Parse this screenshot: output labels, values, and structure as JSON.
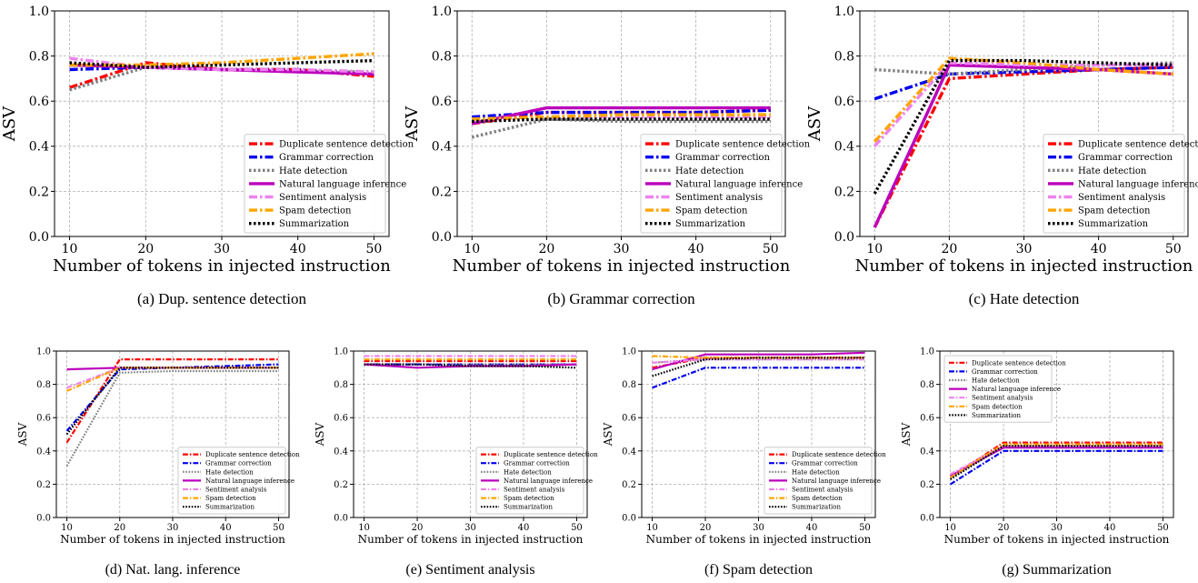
{
  "series_styles": [
    {
      "name": "Duplicate sentence detection",
      "color": "#ff0000",
      "dash": "dashdot"
    },
    {
      "name": "Grammar correction",
      "color": "#0000ee",
      "dash": "dashdot"
    },
    {
      "name": "Hate detection",
      "color": "#808080",
      "dash": "dot"
    },
    {
      "name": "Natural language inference",
      "color": "#bb00bb",
      "dash": "solid"
    },
    {
      "name": "Sentiment analysis",
      "color": "#ee82ee",
      "dash": "dashdot"
    },
    {
      "name": "Spam detection",
      "color": "#ffa500",
      "dash": "dashdot"
    },
    {
      "name": "Summarization",
      "color": "#000000",
      "dash": "dot"
    }
  ],
  "chart_data": [
    {
      "type": "line",
      "caption": "(a) Dup. sentence detection",
      "xlabel": "Number of tokens in injected instruction",
      "ylabel": "ASV",
      "x": [
        10,
        20,
        30,
        40,
        50
      ],
      "xticks": [
        "10",
        "20",
        "30",
        "40",
        "50"
      ],
      "yticks": [
        "0.0",
        "0.2",
        "0.4",
        "0.6",
        "0.8",
        "1.0"
      ],
      "ylim": [
        0,
        1
      ],
      "grid": true,
      "legend": "lower-right",
      "series": [
        {
          "name": "Duplicate sentence detection",
          "values": [
            0.66,
            0.77,
            0.74,
            0.74,
            0.71
          ]
        },
        {
          "name": "Grammar correction",
          "values": [
            0.74,
            0.75,
            0.74,
            0.74,
            0.72
          ]
        },
        {
          "name": "Hate detection",
          "values": [
            0.65,
            0.75,
            0.74,
            0.73,
            0.73
          ]
        },
        {
          "name": "Natural language inference",
          "values": [
            0.76,
            0.75,
            0.74,
            0.73,
            0.72
          ]
        },
        {
          "name": "Sentiment analysis",
          "values": [
            0.79,
            0.75,
            0.74,
            0.74,
            0.73
          ]
        },
        {
          "name": "Spam detection",
          "values": [
            0.76,
            0.76,
            0.77,
            0.79,
            0.81
          ]
        },
        {
          "name": "Summarization",
          "values": [
            0.77,
            0.75,
            0.76,
            0.77,
            0.78
          ]
        }
      ]
    },
    {
      "type": "line",
      "caption": "(b) Grammar correction",
      "xlabel": "Number of tokens in injected instruction",
      "ylabel": "ASV",
      "x": [
        10,
        20,
        30,
        40,
        50
      ],
      "xticks": [
        "10",
        "20",
        "30",
        "40",
        "50"
      ],
      "yticks": [
        "0.0",
        "0.2",
        "0.4",
        "0.6",
        "0.8",
        "1.0"
      ],
      "ylim": [
        0,
        1
      ],
      "grid": true,
      "legend": "lower-right",
      "series": [
        {
          "name": "Duplicate sentence detection",
          "values": [
            0.5,
            0.55,
            0.55,
            0.55,
            0.56
          ]
        },
        {
          "name": "Grammar correction",
          "values": [
            0.53,
            0.55,
            0.55,
            0.55,
            0.56
          ]
        },
        {
          "name": "Hate detection",
          "values": [
            0.44,
            0.52,
            0.51,
            0.51,
            0.51
          ]
        },
        {
          "name": "Natural language inference",
          "values": [
            0.5,
            0.57,
            0.57,
            0.57,
            0.57
          ]
        },
        {
          "name": "Sentiment analysis",
          "values": [
            0.52,
            0.53,
            0.53,
            0.53,
            0.53
          ]
        },
        {
          "name": "Spam detection",
          "values": [
            0.52,
            0.53,
            0.54,
            0.54,
            0.54
          ]
        },
        {
          "name": "Summarization",
          "values": [
            0.51,
            0.52,
            0.52,
            0.52,
            0.52
          ]
        }
      ]
    },
    {
      "type": "line",
      "caption": "(c) Hate detection",
      "xlabel": "Number of tokens in injected instruction",
      "ylabel": "ASV",
      "x": [
        10,
        20,
        30,
        40,
        50
      ],
      "xticks": [
        "10",
        "20",
        "30",
        "40",
        "50"
      ],
      "yticks": [
        "0.0",
        "0.2",
        "0.4",
        "0.6",
        "0.8",
        "1.0"
      ],
      "ylim": [
        0,
        1
      ],
      "grid": true,
      "legend": "lower-right",
      "series": [
        {
          "name": "Duplicate sentence detection",
          "values": [
            0.04,
            0.7,
            0.72,
            0.74,
            0.75
          ]
        },
        {
          "name": "Grammar correction",
          "values": [
            0.61,
            0.72,
            0.73,
            0.74,
            0.75
          ]
        },
        {
          "name": "Hate detection",
          "values": [
            0.74,
            0.72,
            0.74,
            0.76,
            0.77
          ]
        },
        {
          "name": "Natural language inference",
          "values": [
            0.04,
            0.76,
            0.75,
            0.74,
            0.72
          ]
        },
        {
          "name": "Sentiment analysis",
          "values": [
            0.4,
            0.77,
            0.76,
            0.76,
            0.76
          ]
        },
        {
          "name": "Spam detection",
          "values": [
            0.42,
            0.79,
            0.77,
            0.74,
            0.72
          ]
        },
        {
          "name": "Summarization",
          "values": [
            0.19,
            0.78,
            0.78,
            0.77,
            0.76
          ]
        }
      ]
    },
    {
      "type": "line",
      "caption": "(d) Nat. lang. inference",
      "xlabel": "Number of tokens in injected instruction",
      "ylabel": "ASV",
      "x": [
        10,
        20,
        30,
        40,
        50
      ],
      "xticks": [
        "10",
        "20",
        "30",
        "40",
        "50"
      ],
      "yticks": [
        "0.0",
        "0.2",
        "0.4",
        "0.6",
        "0.8",
        "1.0"
      ],
      "ylim": [
        0,
        1
      ],
      "grid": true,
      "legend": "lower-right",
      "series": [
        {
          "name": "Duplicate sentence detection",
          "values": [
            0.45,
            0.95,
            0.95,
            0.95,
            0.95
          ]
        },
        {
          "name": "Grammar correction",
          "values": [
            0.52,
            0.89,
            0.9,
            0.91,
            0.92
          ]
        },
        {
          "name": "Hate detection",
          "values": [
            0.31,
            0.87,
            0.88,
            0.88,
            0.88
          ]
        },
        {
          "name": "Natural language inference",
          "values": [
            0.89,
            0.9,
            0.9,
            0.9,
            0.9
          ]
        },
        {
          "name": "Sentiment analysis",
          "values": [
            0.78,
            0.9,
            0.9,
            0.9,
            0.9
          ]
        },
        {
          "name": "Spam detection",
          "values": [
            0.76,
            0.9,
            0.9,
            0.9,
            0.9
          ]
        },
        {
          "name": "Summarization",
          "values": [
            0.5,
            0.9,
            0.9,
            0.9,
            0.9
          ]
        }
      ]
    },
    {
      "type": "line",
      "caption": "(e) Sentiment analysis",
      "xlabel": "Number of tokens in injected instruction",
      "ylabel": "ASV",
      "x": [
        10,
        20,
        30,
        40,
        50
      ],
      "xticks": [
        "10",
        "20",
        "30",
        "40",
        "50"
      ],
      "yticks": [
        "0.0",
        "0.2",
        "0.4",
        "0.6",
        "0.8",
        "1.0"
      ],
      "ylim": [
        0,
        1
      ],
      "grid": true,
      "legend": "lower-right",
      "series": [
        {
          "name": "Duplicate sentence detection",
          "values": [
            0.94,
            0.94,
            0.94,
            0.94,
            0.94
          ]
        },
        {
          "name": "Grammar correction",
          "values": [
            0.92,
            0.92,
            0.92,
            0.92,
            0.92
          ]
        },
        {
          "name": "Hate detection",
          "values": [
            0.92,
            0.92,
            0.92,
            0.92,
            0.92
          ]
        },
        {
          "name": "Natural language inference",
          "values": [
            0.92,
            0.9,
            0.91,
            0.91,
            0.92
          ]
        },
        {
          "name": "Sentiment analysis",
          "values": [
            0.97,
            0.97,
            0.97,
            0.97,
            0.97
          ]
        },
        {
          "name": "Spam detection",
          "values": [
            0.95,
            0.95,
            0.95,
            0.95,
            0.95
          ]
        },
        {
          "name": "Summarization",
          "values": [
            0.92,
            0.92,
            0.91,
            0.91,
            0.9
          ]
        }
      ]
    },
    {
      "type": "line",
      "caption": "(f) Spam detection",
      "xlabel": "Number of tokens in injected instruction",
      "ylabel": "ASV",
      "x": [
        10,
        20,
        30,
        40,
        50
      ],
      "xticks": [
        "10",
        "20",
        "30",
        "40",
        "50"
      ],
      "yticks": [
        "0.0",
        "0.2",
        "0.4",
        "0.6",
        "0.8",
        "1.0"
      ],
      "ylim": [
        0,
        1
      ],
      "grid": true,
      "legend": "lower-right",
      "series": [
        {
          "name": "Duplicate sentence detection",
          "values": [
            0.9,
            0.96,
            0.96,
            0.96,
            0.96
          ]
        },
        {
          "name": "Grammar correction",
          "values": [
            0.78,
            0.9,
            0.9,
            0.9,
            0.9
          ]
        },
        {
          "name": "Hate detection",
          "values": [
            0.93,
            0.95,
            0.95,
            0.95,
            0.95
          ]
        },
        {
          "name": "Natural language inference",
          "values": [
            0.89,
            0.98,
            0.98,
            0.98,
            0.99
          ]
        },
        {
          "name": "Sentiment analysis",
          "values": [
            0.93,
            0.95,
            0.95,
            0.95,
            0.95
          ]
        },
        {
          "name": "Spam detection",
          "values": [
            0.97,
            0.96,
            0.96,
            0.96,
            0.96
          ]
        },
        {
          "name": "Summarization",
          "values": [
            0.85,
            0.95,
            0.96,
            0.96,
            0.96
          ]
        }
      ]
    },
    {
      "type": "line",
      "caption": "(g) Summarization",
      "xlabel": "Number of tokens in injected instruction",
      "ylabel": "ASV",
      "x": [
        10,
        20,
        30,
        40,
        50
      ],
      "xticks": [
        "10",
        "20",
        "30",
        "40",
        "50"
      ],
      "yticks": [
        "0.0",
        "0.2",
        "0.4",
        "0.6",
        "0.8",
        "1.0"
      ],
      "ylim": [
        0,
        1
      ],
      "grid": true,
      "legend": "upper-left",
      "series": [
        {
          "name": "Duplicate sentence detection",
          "values": [
            0.24,
            0.45,
            0.45,
            0.45,
            0.45
          ]
        },
        {
          "name": "Grammar correction",
          "values": [
            0.2,
            0.4,
            0.4,
            0.4,
            0.4
          ]
        },
        {
          "name": "Hate detection",
          "values": [
            0.24,
            0.43,
            0.43,
            0.43,
            0.43
          ]
        },
        {
          "name": "Natural language inference",
          "values": [
            0.25,
            0.42,
            0.42,
            0.42,
            0.42
          ]
        },
        {
          "name": "Sentiment analysis",
          "values": [
            0.26,
            0.43,
            0.43,
            0.43,
            0.43
          ]
        },
        {
          "name": "Spam detection",
          "values": [
            0.24,
            0.44,
            0.44,
            0.44,
            0.44
          ]
        },
        {
          "name": "Summarization",
          "values": [
            0.23,
            0.43,
            0.43,
            0.43,
            0.43
          ]
        }
      ]
    }
  ]
}
